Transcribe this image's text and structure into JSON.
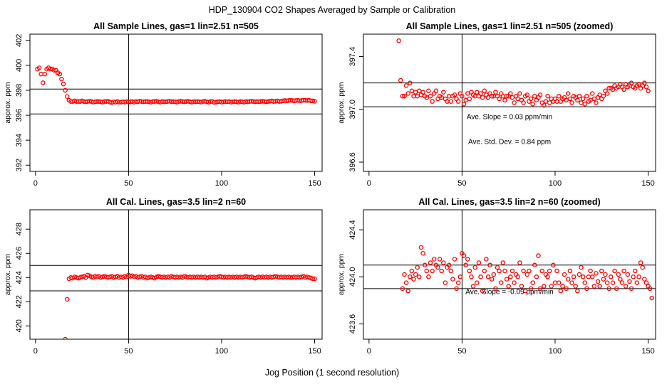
{
  "figure": {
    "title": "HDP_130904  CO2 Shapes Averaged by Sample or Calibration",
    "xlabel": "Jog Position (1 second resolution)"
  },
  "colors": {
    "points": "#ff0000",
    "axes": "#000000",
    "background": "#ffffff"
  },
  "chart_data": [
    {
      "type": "scatter",
      "title": "All Sample Lines, gas=1 lin=2.51 n=505",
      "xlabel": "",
      "ylabel": "approx. ppm",
      "xlim": [
        -3,
        154
      ],
      "ylim": [
        391.5,
        402.5
      ],
      "xticks": [
        0,
        50,
        100,
        150
      ],
      "yticks": [
        392,
        394,
        396,
        398,
        400,
        402
      ],
      "xtick_labels": [
        "0",
        "50",
        "100",
        "150"
      ],
      "ytick_labels": [
        "392",
        "394",
        "396",
        "398",
        "400",
        "402"
      ],
      "vline": 50,
      "hlines": [
        396.1,
        398.1
      ],
      "annotations": [],
      "series": [
        {
          "name": "sample",
          "x_start": 1,
          "x_step": 1,
          "y": [
            399.7,
            399.8,
            399.3,
            398.6,
            399.3,
            399.7,
            399.8,
            399.7,
            399.7,
            399.6,
            399.6,
            399.4,
            399.3,
            398.9,
            398.5,
            398.0,
            397.5,
            397.2,
            397.1,
            397.1,
            397.15,
            397.1,
            397.1,
            397.1,
            397.15,
            397.1,
            397.08,
            397.1,
            397.12,
            397.1,
            397.05,
            397.08,
            397.1,
            397.1,
            397.08,
            397.05,
            397.1,
            397.1,
            397.12,
            397.05,
            397.02,
            397.08,
            397.05,
            397.1,
            397.05,
            397.05,
            397.08,
            397.05,
            397.1,
            397.05,
            397.08,
            397.1,
            397.05,
            397.1,
            397.08,
            397.12,
            397.1,
            397.08,
            397.1,
            397.1,
            397.08,
            397.05,
            397.1,
            397.1,
            397.12,
            397.08,
            397.05,
            397.1,
            397.08,
            397.08,
            397.1,
            397.12,
            397.08,
            397.1,
            397.08,
            397.05,
            397.1,
            397.12,
            397.1,
            397.08,
            397.1,
            397.12,
            397.08,
            397.05,
            397.1,
            397.08,
            397.1,
            397.08,
            397.05,
            397.1,
            397.12,
            397.08,
            397.05,
            397.1,
            397.1,
            397.03,
            397.05,
            397.08,
            397.1,
            397.05,
            397.08,
            397.1,
            397.08,
            397.1,
            397.05,
            397.08,
            397.1,
            397.08,
            397.05,
            397.1,
            397.08,
            397.05,
            397.1,
            397.08,
            397.1,
            397.12,
            397.1,
            397.08,
            397.1,
            397.08,
            397.1,
            397.12,
            397.1,
            397.08,
            397.1,
            397.12,
            397.15,
            397.1,
            397.12,
            397.15,
            397.1,
            397.12,
            397.15,
            397.18,
            397.15,
            397.18,
            397.2,
            397.18,
            397.15,
            397.18,
            397.2,
            397.15,
            397.18,
            397.2,
            397.2,
            397.18,
            397.2,
            397.15,
            397.15,
            397.12
          ]
        }
      ]
    },
    {
      "type": "scatter",
      "title": "All Sample Lines, gas=1 lin=2.51 n=505 (zoomed)",
      "xlabel": "",
      "ylabel": "approx. ppm",
      "xlim": [
        -3,
        154
      ],
      "ylim": [
        396.53,
        397.57
      ],
      "xticks": [
        0,
        50,
        100,
        150
      ],
      "yticks": [
        396.6,
        397.0,
        397.4
      ],
      "xtick_labels": [
        "0",
        "50",
        "100",
        "150"
      ],
      "ytick_labels": [
        "396.6",
        "397.0",
        "397.4"
      ],
      "vline": 50,
      "hlines": [
        397.02,
        397.2
      ],
      "annotations": [
        "Ave. Slope =  0.03  ppm/min",
        "Ave. Std. Dev. =  0.84  ppm"
      ],
      "series": [
        {
          "name": "sample-zoomed",
          "x_start": 16,
          "x_step": 1,
          "y": [
            397.52,
            397.22,
            397.1,
            397.1,
            397.18,
            397.12,
            397.2,
            397.14,
            397.1,
            397.13,
            397.1,
            397.14,
            397.11,
            397.13,
            397.1,
            397.09,
            397.14,
            397.1,
            397.06,
            397.12,
            397.14,
            397.08,
            397.1,
            397.09,
            397.13,
            397.08,
            397.06,
            397.1,
            397.06,
            397.1,
            397.11,
            397.08,
            397.06,
            397.12,
            397.1,
            397.04,
            397.07,
            397.12,
            397.08,
            397.13,
            397.11,
            397.1,
            397.13,
            397.1,
            397.12,
            397.09,
            397.14,
            397.11,
            397.09,
            397.12,
            397.1,
            397.1,
            397.13,
            397.1,
            397.08,
            397.12,
            397.1,
            397.07,
            397.1,
            397.1,
            397.12,
            397.09,
            397.05,
            397.1,
            397.08,
            397.12,
            397.07,
            397.05,
            397.1,
            397.11,
            397.06,
            397.08,
            397.04,
            397.1,
            397.07,
            397.09,
            397.11,
            397.05,
            397.03,
            397.06,
            397.1,
            397.05,
            397.08,
            397.06,
            397.08,
            397.06,
            397.1,
            397.06,
            397.08,
            397.09,
            397.07,
            397.12,
            397.08,
            397.05,
            397.1,
            397.09,
            397.07,
            397.1,
            397.05,
            397.08,
            397.04,
            397.1,
            397.06,
            397.07,
            397.12,
            397.08,
            397.05,
            397.09,
            397.11,
            397.08,
            397.1,
            397.14,
            397.12,
            397.16,
            397.16,
            397.15,
            397.18,
            397.16,
            397.17,
            397.19,
            397.17,
            397.15,
            397.19,
            397.17,
            397.18,
            397.2,
            397.17,
            397.16,
            397.18,
            397.19,
            397.16,
            397.18,
            397.2,
            397.17,
            397.14
          ]
        }
      ]
    },
    {
      "type": "scatter",
      "title": "All Cal. Lines, gas=3.5 lin=2 n=60",
      "xlabel": "",
      "ylabel": "approx. ppm",
      "xlim": [
        -3,
        154
      ],
      "ylim": [
        418.9,
        429.6
      ],
      "xticks": [
        0,
        50,
        100,
        150
      ],
      "yticks": [
        420,
        422,
        424,
        426,
        428
      ],
      "xtick_labels": [
        "0",
        "50",
        "100",
        "150"
      ],
      "ytick_labels": [
        "420",
        "422",
        "424",
        "426",
        "428"
      ],
      "vline": 50,
      "hlines": [
        422.9,
        425.0
      ],
      "annotations": [],
      "series": [
        {
          "name": "calibration",
          "x_start": 16,
          "x_step": 1,
          "y": [
            418.9,
            422.2,
            423.9,
            424.0,
            423.95,
            424.05,
            424.0,
            423.95,
            424.0,
            424.05,
            424.1,
            424.0,
            424.2,
            424.15,
            424.05,
            424.0,
            424.1,
            424.05,
            424.1,
            424.0,
            424.05,
            424.1,
            424.05,
            424.0,
            424.05,
            424.1,
            424.0,
            424.05,
            424.1,
            424.0,
            424.05,
            424.0,
            424.1,
            424.05,
            424.2,
            424.1,
            424.15,
            424.05,
            424.1,
            424.0,
            424.05,
            424.1,
            424.0,
            424.05,
            423.95,
            424.0,
            424.05,
            424.0,
            423.95,
            424.05,
            424.1,
            424.05,
            424.0,
            424.05,
            424.0,
            424.05,
            424.0,
            424.1,
            424.05,
            424.0,
            424.05,
            424.0,
            424.05,
            424.0,
            424.1,
            424.05,
            424.0,
            424.05,
            424.0,
            424.05,
            424.0,
            424.05,
            424.0,
            424.05,
            424.0,
            424.05,
            423.95,
            424.0,
            424.05,
            424.0,
            424.05,
            424.0,
            424.05,
            424.1,
            424.05,
            424.0,
            424.05,
            424.0,
            424.05,
            424.0,
            424.05,
            424.0,
            424.05,
            424.0,
            424.05,
            424.0,
            424.05,
            424.1,
            424.05,
            424.0,
            424.05,
            424.0,
            423.95,
            424.0,
            424.05,
            424.0,
            424.05,
            424.0,
            424.05,
            424.0,
            424.05,
            424.0,
            424.05,
            424.1,
            424.05,
            424.0,
            424.05,
            424.0,
            424.05,
            424.0,
            424.05,
            424.0,
            424.0,
            424.05,
            424.0,
            424.05,
            424.0,
            424.05,
            424.1,
            424.0,
            424.05,
            424.0,
            423.95,
            423.9,
            423.9
          ]
        }
      ]
    },
    {
      "type": "scatter",
      "title": "All Cal. Lines, gas=3.5 lin=2 n=60 (zoomed)",
      "xlabel": "",
      "ylabel": "approx. ppm",
      "xlim": [
        -3,
        154
      ],
      "ylim": [
        423.47,
        424.57
      ],
      "xticks": [
        0,
        50,
        100,
        150
      ],
      "yticks": [
        423.6,
        424.0,
        424.4
      ],
      "xtick_labels": [
        "0",
        "50",
        "100",
        "150"
      ],
      "ytick_labels": [
        "423.6",
        "424.0",
        "424.4"
      ],
      "vline": 50,
      "hlines": [
        423.9,
        424.1
      ],
      "annotations": [
        "Ave. Slope =  -0.09  ppm/min"
      ],
      "series": [
        {
          "name": "calibration-zoomed",
          "x_start": 18,
          "x_step": 1,
          "y": [
            423.9,
            424.02,
            423.95,
            423.88,
            424.0,
            424.05,
            423.98,
            424.02,
            424.08,
            424.0,
            424.25,
            424.2,
            424.1,
            424.05,
            424.0,
            424.12,
            424.05,
            424.15,
            424.1,
            424.08,
            424.15,
            424.05,
            424.12,
            423.95,
            424.08,
            424.1,
            424.05,
            423.98,
            424.15,
            423.9,
            423.95,
            424.0,
            424.2,
            424.18,
            424.1,
            424.15,
            424.05,
            424.0,
            423.92,
            424.08,
            423.95,
            424.12,
            424.0,
            423.88,
            424.05,
            424.15,
            424.0,
            424.1,
            423.98,
            424.02,
            423.9,
            424.08,
            424.05,
            423.95,
            424.12,
            424.05,
            423.98,
            423.92,
            424.0,
            424.05,
            423.95,
            424.02,
            424.0,
            424.12,
            423.92,
            424.05,
            423.88,
            424.02,
            424.05,
            423.9,
            423.95,
            424.1,
            424.0,
            424.18,
            423.9,
            424.05,
            423.92,
            424.02,
            424.0,
            424.05,
            423.92,
            424.1,
            423.95,
            424.05,
            423.95,
            423.88,
            423.92,
            424.02,
            423.9,
            423.98,
            424.05,
            423.95,
            424.0,
            423.92,
            423.88,
            424.02,
            424.08,
            424.0,
            423.95,
            423.9,
            424.0,
            424.05,
            424.0,
            423.92,
            424.03,
            423.96,
            423.92,
            424.05,
            423.98,
            424.02,
            423.95,
            423.9,
            424.0,
            423.95,
            424.05,
            423.9,
            424.02,
            423.98,
            423.95,
            424.05,
            423.92,
            424.02,
            423.96,
            423.9,
            424.0,
            424.05,
            423.95,
            424.0,
            424.12,
            424.08,
            423.98,
            423.95,
            423.92,
            423.9,
            423.82
          ]
        }
      ]
    }
  ]
}
